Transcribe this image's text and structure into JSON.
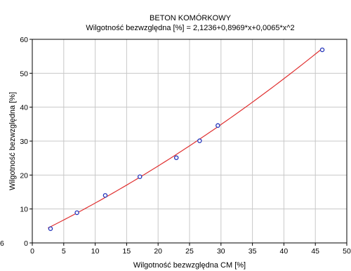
{
  "chart_data": {
    "type": "scatter",
    "title": "BETON KOMÓRKOWY",
    "subtitle": "Wilgotność bezwzględna [%] = 2,1236+0,8969*x+0,0065*x^2",
    "xlabel": "Wilgotność bezwzględna CM [%]",
    "ylabel": "Wilgotność bezwzględna [%]",
    "xlim": [
      0,
      50
    ],
    "ylim": [
      0,
      60
    ],
    "x_ticks": [
      0,
      5,
      10,
      15,
      20,
      25,
      30,
      35,
      40,
      45,
      50
    ],
    "y_ticks": [
      0,
      10,
      20,
      30,
      40,
      50,
      60
    ],
    "grid": true,
    "series": [
      {
        "x": [
          2.9,
          7.1,
          11.6,
          17.1,
          22.9,
          26.6,
          29.5,
          46.1
        ],
        "y": [
          4.2,
          8.9,
          14.0,
          19.5,
          25.1,
          30.1,
          34.6,
          56.9
        ]
      }
    ],
    "fit": {
      "coefficients": [
        2.1236,
        0.8969,
        0.0065
      ],
      "x_range": [
        2.5,
        46.2
      ]
    },
    "colors": {
      "points": "#2233bb",
      "fit_line": "#e03030",
      "grid": "#c8c8c8"
    },
    "edge_fragment": "6"
  }
}
